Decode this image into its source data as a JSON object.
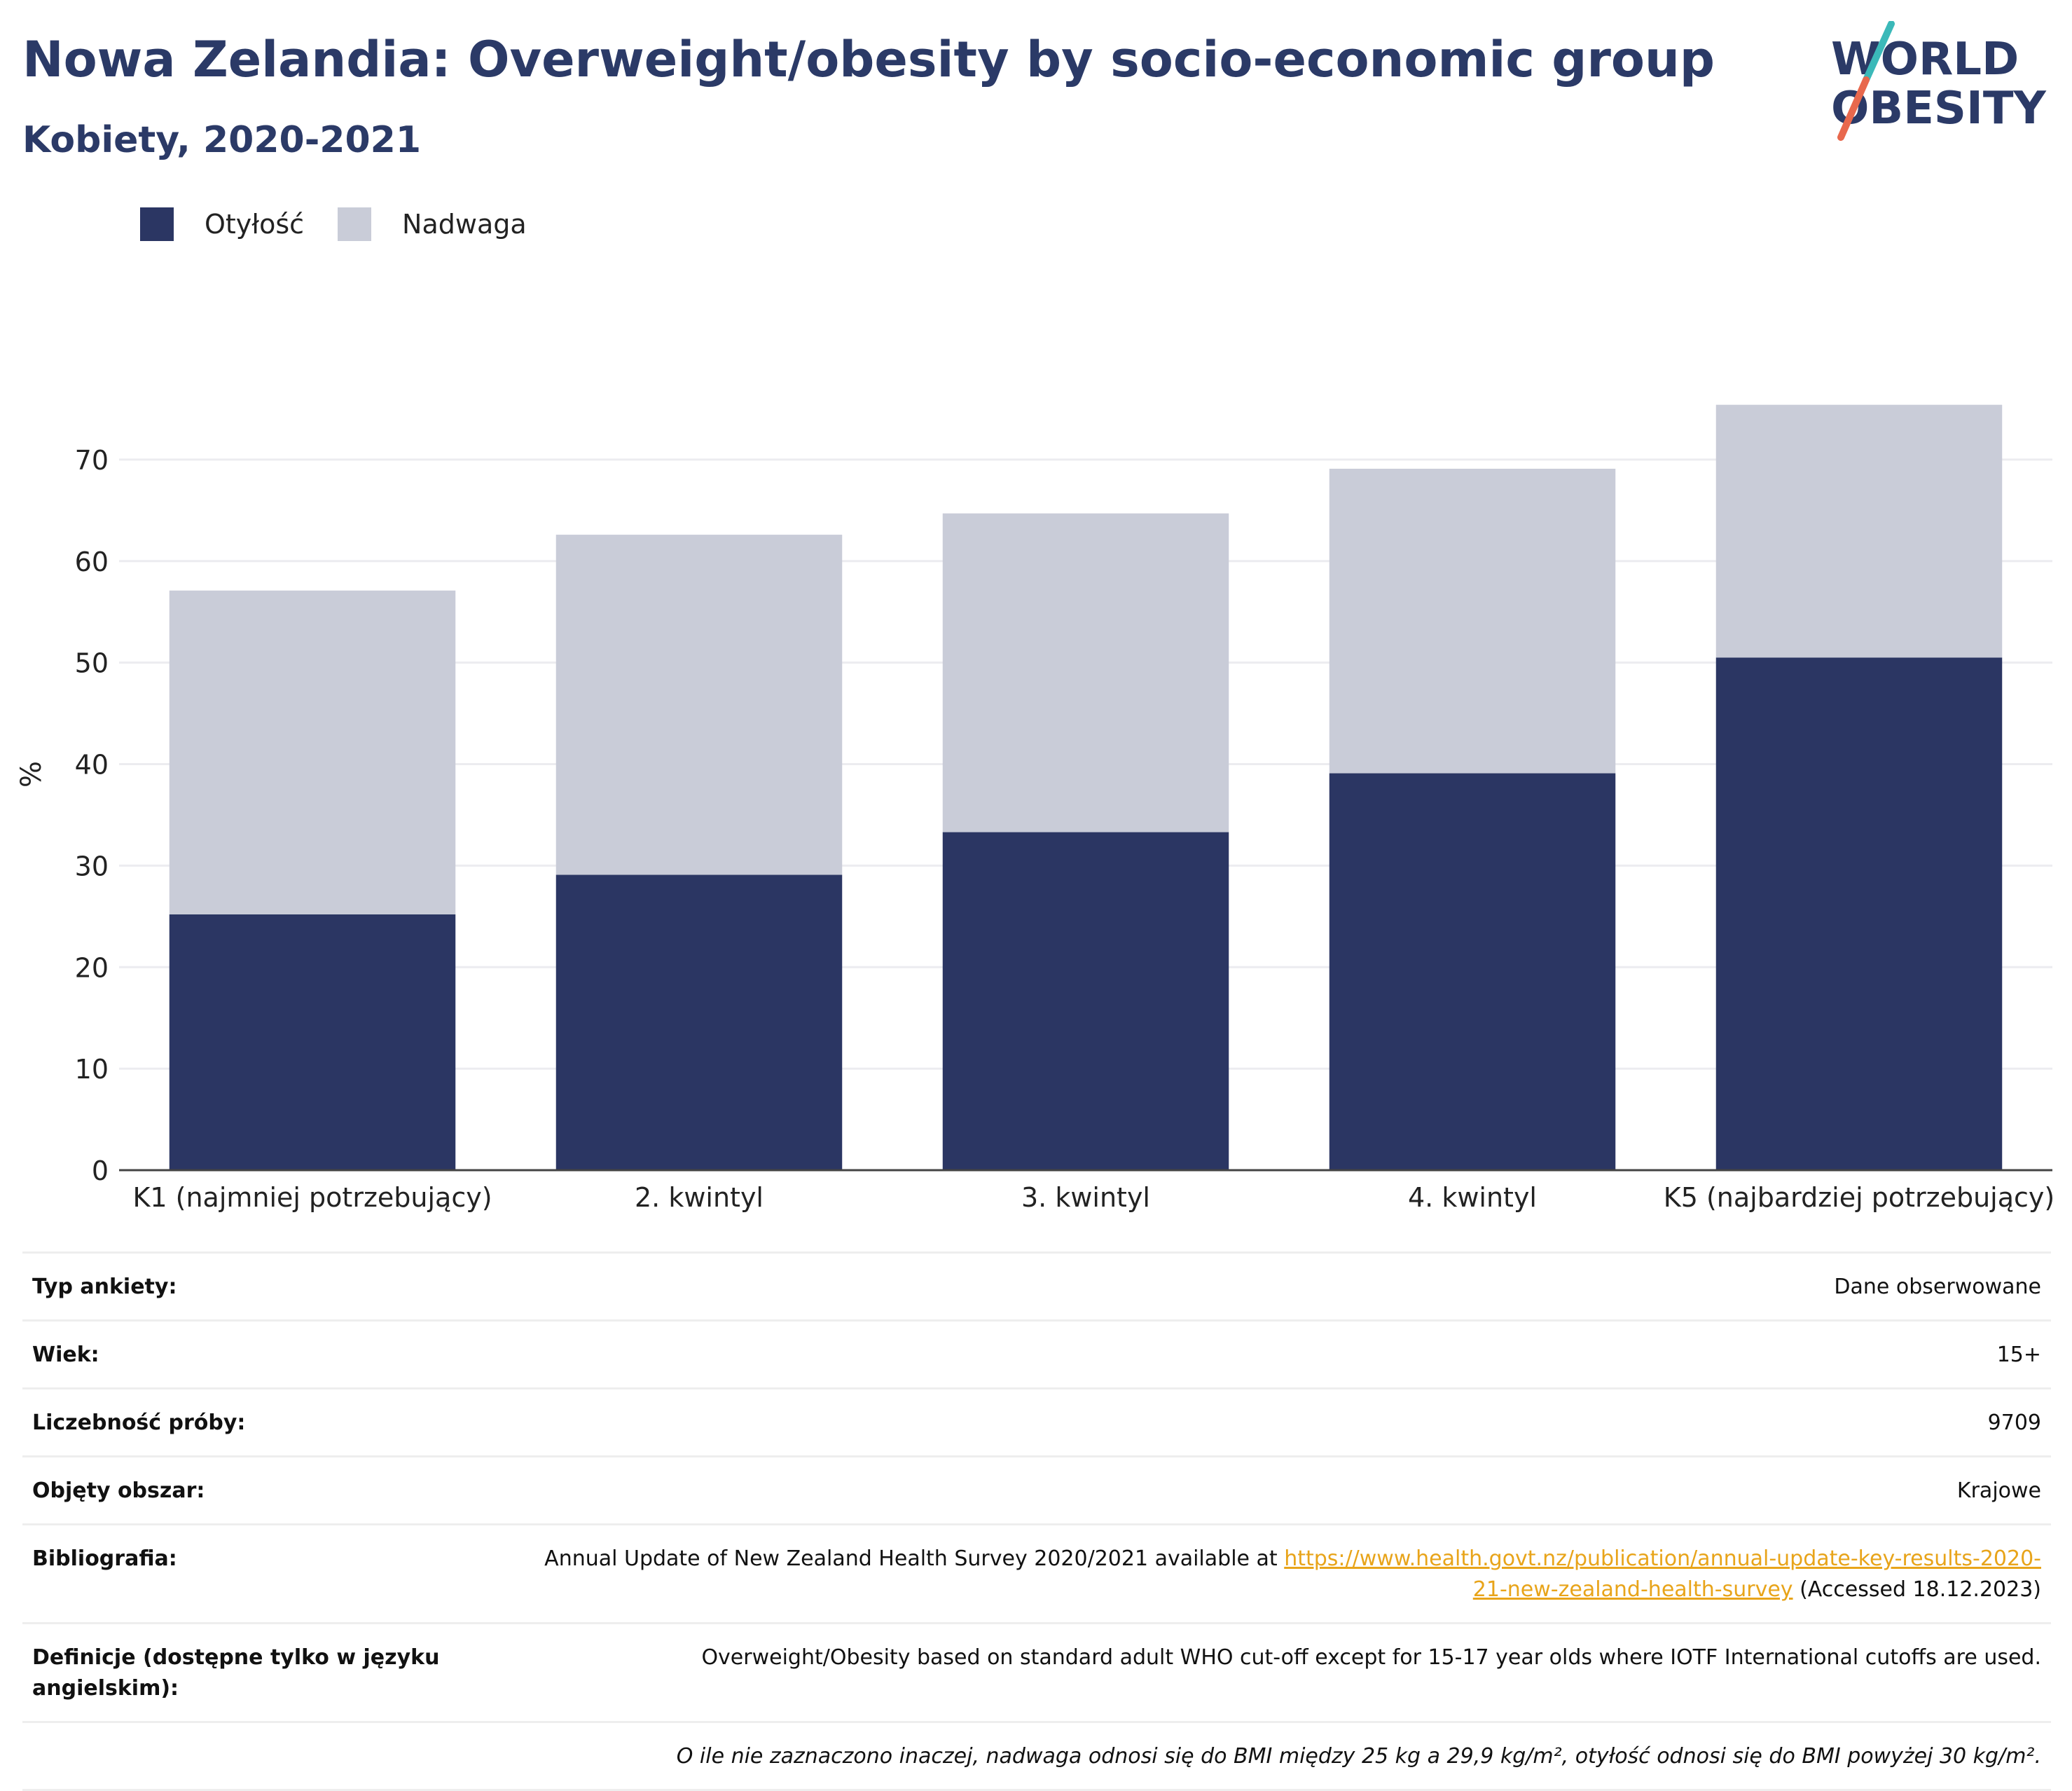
{
  "header": {
    "title": "Nowa Zelandia: Overweight/obesity by socio-economic group",
    "subtitle": "Kobiety, 2020-2021"
  },
  "logo": {
    "line1": "WORLD",
    "line2": "OBESITY",
    "colors": {
      "text": "#2b3a67",
      "slash_top": "#3bb9b9",
      "slash_bottom": "#e8684d"
    }
  },
  "legend": [
    {
      "label": "Otyłość",
      "color": "#2b3663"
    },
    {
      "label": "Nadwaga",
      "color": "#c9ccd8"
    }
  ],
  "chart_data": {
    "type": "bar",
    "stacked": true,
    "categories": [
      "K1 (najmniej potrzebujący)",
      "2. kwintyl",
      "3. kwintyl",
      "4. kwintyl",
      "K5 (najbardziej potrzebujący)"
    ],
    "series": [
      {
        "name": "Otyłość",
        "values": [
          25.2,
          29.1,
          33.3,
          39.1,
          50.5
        ],
        "color": "#2b3663"
      },
      {
        "name": "Nadwaga",
        "values": [
          31.9,
          33.5,
          31.4,
          30.0,
          24.9
        ],
        "color": "#c9ccd8"
      }
    ],
    "ylabel": "%",
    "ylim": [
      0,
      78
    ],
    "yticks": [
      0,
      10,
      20,
      30,
      40,
      50,
      60,
      70
    ],
    "grid": true
  },
  "meta": [
    {
      "key": "Typ ankiety:",
      "value": "Dane obserwowane"
    },
    {
      "key": "Wiek:",
      "value": "15+"
    },
    {
      "key": "Liczebność próby:",
      "value": "9709"
    },
    {
      "key": "Objęty obszar:",
      "value": "Krajowe"
    }
  ],
  "bibliography": {
    "key": "Bibliografia:",
    "prefix": "Annual Update of New Zealand Health Survey 2020/2021 available at ",
    "link": "https://www.health.govt.nz/publication/annual-update-key-results-2020-21-new-zealand-health-survey",
    "suffix": " (Accessed 18.12.2023)"
  },
  "definitions": {
    "key": "Definicje (dostępne tylko w języku angielskim):",
    "value": "Overweight/Obesity based on standard adult WHO cut-off except for 15-17 year olds where IOTF International cutoffs are used."
  },
  "note": "O ile nie zaznaczono inaczej, nadwaga odnosi się do BMI między 25 kg a 29,9 kg/m², otyłość odnosi się do BMI powyżej 30 kg/m²."
}
